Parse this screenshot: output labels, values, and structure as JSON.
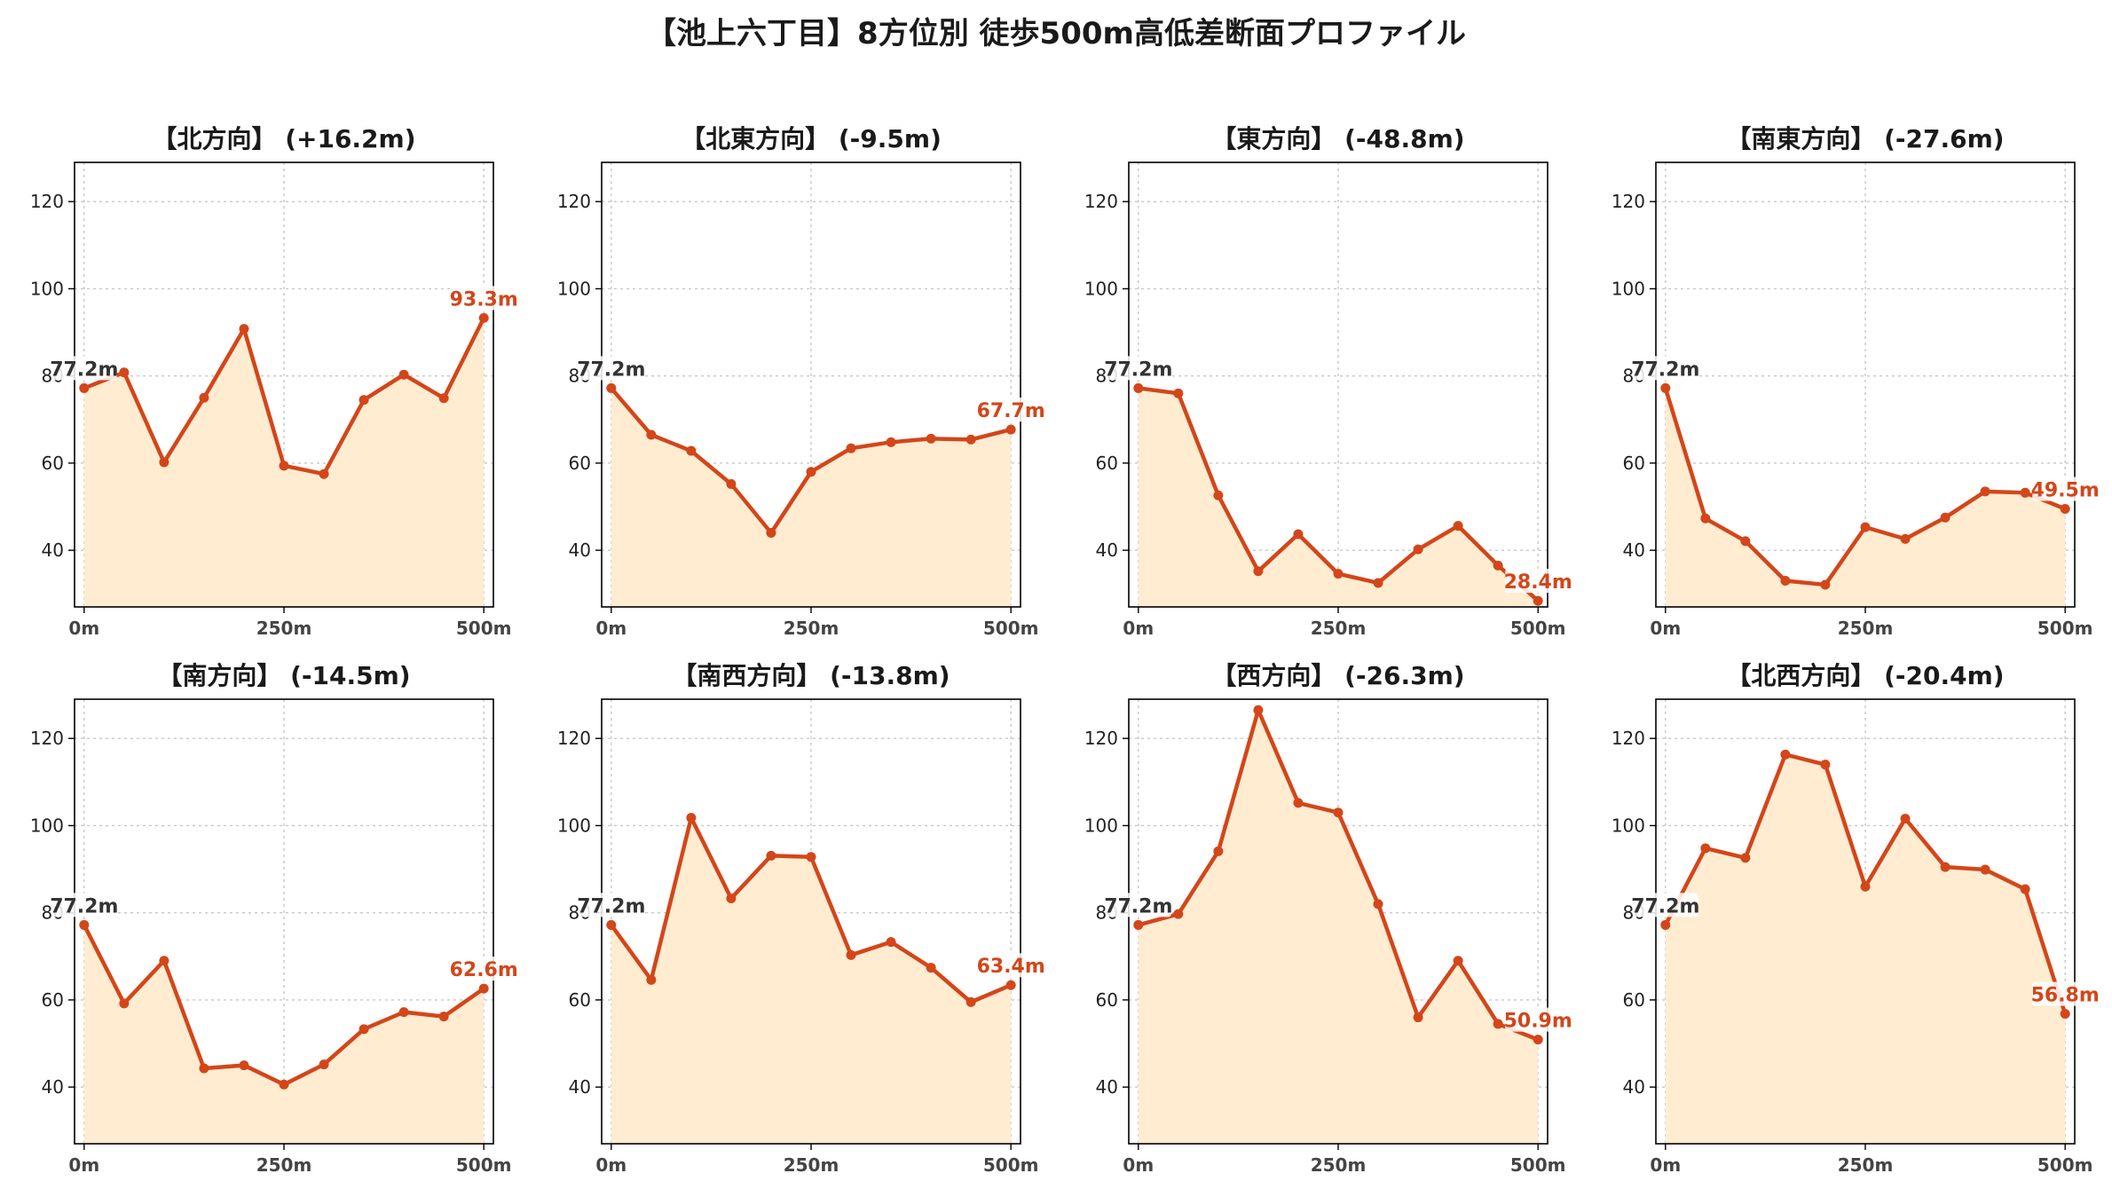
{
  "title": "【池上六丁目】8方位別 徒歩500m高低差断面プロファイル",
  "colors": {
    "line": "#d3461a",
    "fill": "#ffecd1",
    "start_label": "#333333",
    "end_label": "#d3461a"
  },
  "chart_data": [
    {
      "type": "area",
      "title": "【北方向】 (+16.2m)",
      "x": [
        0,
        50,
        100,
        150,
        200,
        250,
        300,
        350,
        400,
        450,
        500
      ],
      "values": [
        77.2,
        80.8,
        60.2,
        75.0,
        90.8,
        59.4,
        57.5,
        74.5,
        80.3,
        74.9,
        93.3
      ],
      "start_label": "77.2m",
      "end_label": "93.3m",
      "ylim": [
        27,
        129
      ],
      "xlim": [
        -12,
        512
      ],
      "yticks": [
        40,
        60,
        80,
        100,
        120
      ],
      "xticks": [
        0,
        250,
        500
      ],
      "xtick_labels": [
        "0m",
        "250m",
        "500m"
      ],
      "grid": true
    },
    {
      "type": "area",
      "title": "【北東方向】 (-9.5m)",
      "x": [
        0,
        50,
        100,
        150,
        200,
        250,
        300,
        350,
        400,
        450,
        500
      ],
      "values": [
        77.2,
        66.5,
        62.8,
        55.2,
        44.0,
        58.0,
        63.4,
        64.8,
        65.6,
        65.4,
        67.7
      ],
      "start_label": "77.2m",
      "end_label": "67.7m",
      "ylim": [
        27,
        129
      ],
      "xlim": [
        -12,
        512
      ],
      "yticks": [
        40,
        60,
        80,
        100,
        120
      ],
      "xticks": [
        0,
        250,
        500
      ],
      "xtick_labels": [
        "0m",
        "250m",
        "500m"
      ],
      "grid": true
    },
    {
      "type": "area",
      "title": "【東方向】 (-48.8m)",
      "x": [
        0,
        50,
        100,
        150,
        200,
        250,
        300,
        350,
        400,
        450,
        500
      ],
      "values": [
        77.2,
        76.0,
        52.6,
        35.2,
        43.7,
        34.6,
        32.5,
        40.2,
        45.6,
        36.5,
        28.4
      ],
      "start_label": "77.2m",
      "end_label": "28.4m",
      "ylim": [
        27,
        129
      ],
      "xlim": [
        -12,
        512
      ],
      "yticks": [
        40,
        60,
        80,
        100,
        120
      ],
      "xticks": [
        0,
        250,
        500
      ],
      "xtick_labels": [
        "0m",
        "250m",
        "500m"
      ],
      "grid": true
    },
    {
      "type": "area",
      "title": "【南東方向】 (-27.6m)",
      "x": [
        0,
        50,
        100,
        150,
        200,
        250,
        300,
        350,
        400,
        450,
        500
      ],
      "values": [
        77.2,
        47.3,
        42.1,
        33.0,
        32.1,
        45.3,
        42.6,
        47.5,
        53.5,
        53.2,
        49.5
      ],
      "start_label": "77.2m",
      "end_label": "49.5m",
      "ylim": [
        27,
        129
      ],
      "xlim": [
        -12,
        512
      ],
      "yticks": [
        40,
        60,
        80,
        100,
        120
      ],
      "xticks": [
        0,
        250,
        500
      ],
      "xtick_labels": [
        "0m",
        "250m",
        "500m"
      ],
      "grid": true
    },
    {
      "type": "area",
      "title": "【南方向】 (-14.5m)",
      "x": [
        0,
        50,
        100,
        150,
        200,
        250,
        300,
        350,
        400,
        450,
        500
      ],
      "values": [
        77.2,
        59.2,
        69.0,
        44.3,
        45.0,
        40.6,
        45.2,
        53.3,
        57.2,
        56.2,
        62.6
      ],
      "start_label": "77.2m",
      "end_label": "62.6m",
      "ylim": [
        27,
        129
      ],
      "xlim": [
        -12,
        512
      ],
      "yticks": [
        40,
        60,
        80,
        100,
        120
      ],
      "xticks": [
        0,
        250,
        500
      ],
      "xtick_labels": [
        "0m",
        "250m",
        "500m"
      ],
      "grid": true
    },
    {
      "type": "area",
      "title": "【南西方向】 (-13.8m)",
      "x": [
        0,
        50,
        100,
        150,
        200,
        250,
        300,
        350,
        400,
        450,
        500
      ],
      "values": [
        77.2,
        64.6,
        101.8,
        83.3,
        93.1,
        92.8,
        70.3,
        73.3,
        67.4,
        59.5,
        63.4
      ],
      "start_label": "77.2m",
      "end_label": "63.4m",
      "ylim": [
        27,
        129
      ],
      "xlim": [
        -12,
        512
      ],
      "yticks": [
        40,
        60,
        80,
        100,
        120
      ],
      "xticks": [
        0,
        250,
        500
      ],
      "xtick_labels": [
        "0m",
        "250m",
        "500m"
      ],
      "grid": true
    },
    {
      "type": "area",
      "title": "【西方向】 (-26.3m)",
      "x": [
        0,
        50,
        100,
        150,
        200,
        250,
        300,
        350,
        400,
        450,
        500
      ],
      "values": [
        77.2,
        79.7,
        94.1,
        126.5,
        105.2,
        103.0,
        82.0,
        56.0,
        69.0,
        54.5,
        50.9
      ],
      "start_label": "77.2m",
      "end_label": "50.9m",
      "ylim": [
        27,
        129
      ],
      "xlim": [
        -12,
        512
      ],
      "yticks": [
        40,
        60,
        80,
        100,
        120
      ],
      "xticks": [
        0,
        250,
        500
      ],
      "xtick_labels": [
        "0m",
        "250m",
        "500m"
      ],
      "grid": true
    },
    {
      "type": "area",
      "title": "【北西方向】 (-20.4m)",
      "x": [
        0,
        50,
        100,
        150,
        200,
        250,
        300,
        350,
        400,
        450,
        500
      ],
      "values": [
        77.2,
        94.8,
        92.6,
        116.3,
        114.0,
        86.0,
        101.6,
        90.5,
        89.9,
        85.4,
        56.8
      ],
      "start_label": "77.2m",
      "end_label": "56.8m",
      "ylim": [
        27,
        129
      ],
      "xlim": [
        -12,
        512
      ],
      "yticks": [
        40,
        60,
        80,
        100,
        120
      ],
      "xticks": [
        0,
        250,
        500
      ],
      "xtick_labels": [
        "0m",
        "250m",
        "500m"
      ],
      "grid": true
    }
  ]
}
